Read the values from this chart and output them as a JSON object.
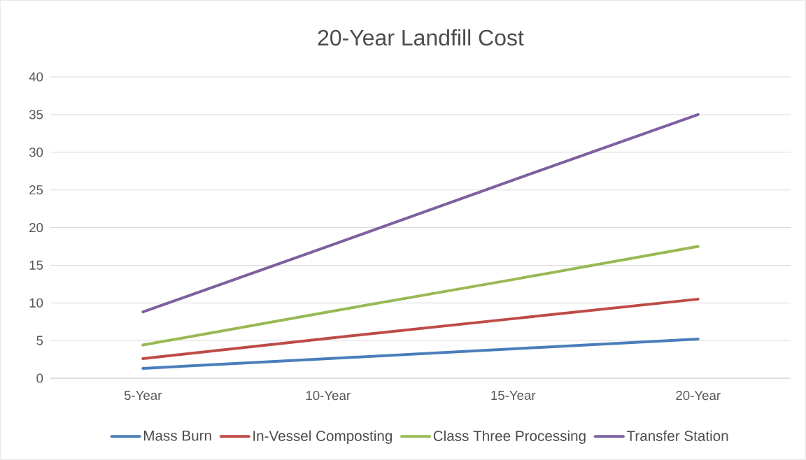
{
  "chart_data": {
    "type": "line",
    "title": "20-Year Landfill Cost",
    "categories": [
      "5-Year",
      "10-Year",
      "15-Year",
      "20-Year"
    ],
    "series": [
      {
        "name": "Mass Burn",
        "color": "#4a7ebb",
        "values": [
          1.3,
          2.6,
          3.9,
          5.2
        ]
      },
      {
        "name": "In-Vessel Composting",
        "color": "#be4b48",
        "values": [
          2.6,
          5.3,
          7.9,
          10.5
        ]
      },
      {
        "name": "Class Three Processing",
        "color": "#98b954",
        "values": [
          4.4,
          8.8,
          13.1,
          17.5
        ]
      },
      {
        "name": "Transfer Station",
        "color": "#7d60a0",
        "values": [
          8.8,
          17.5,
          26.3,
          35
        ]
      }
    ],
    "ylim": [
      0,
      40
    ],
    "yticks": [
      0,
      5,
      10,
      15,
      20,
      25,
      30,
      35,
      40
    ],
    "grid": "y",
    "legend": "bottom",
    "marker": "none",
    "line_style": "solid"
  }
}
